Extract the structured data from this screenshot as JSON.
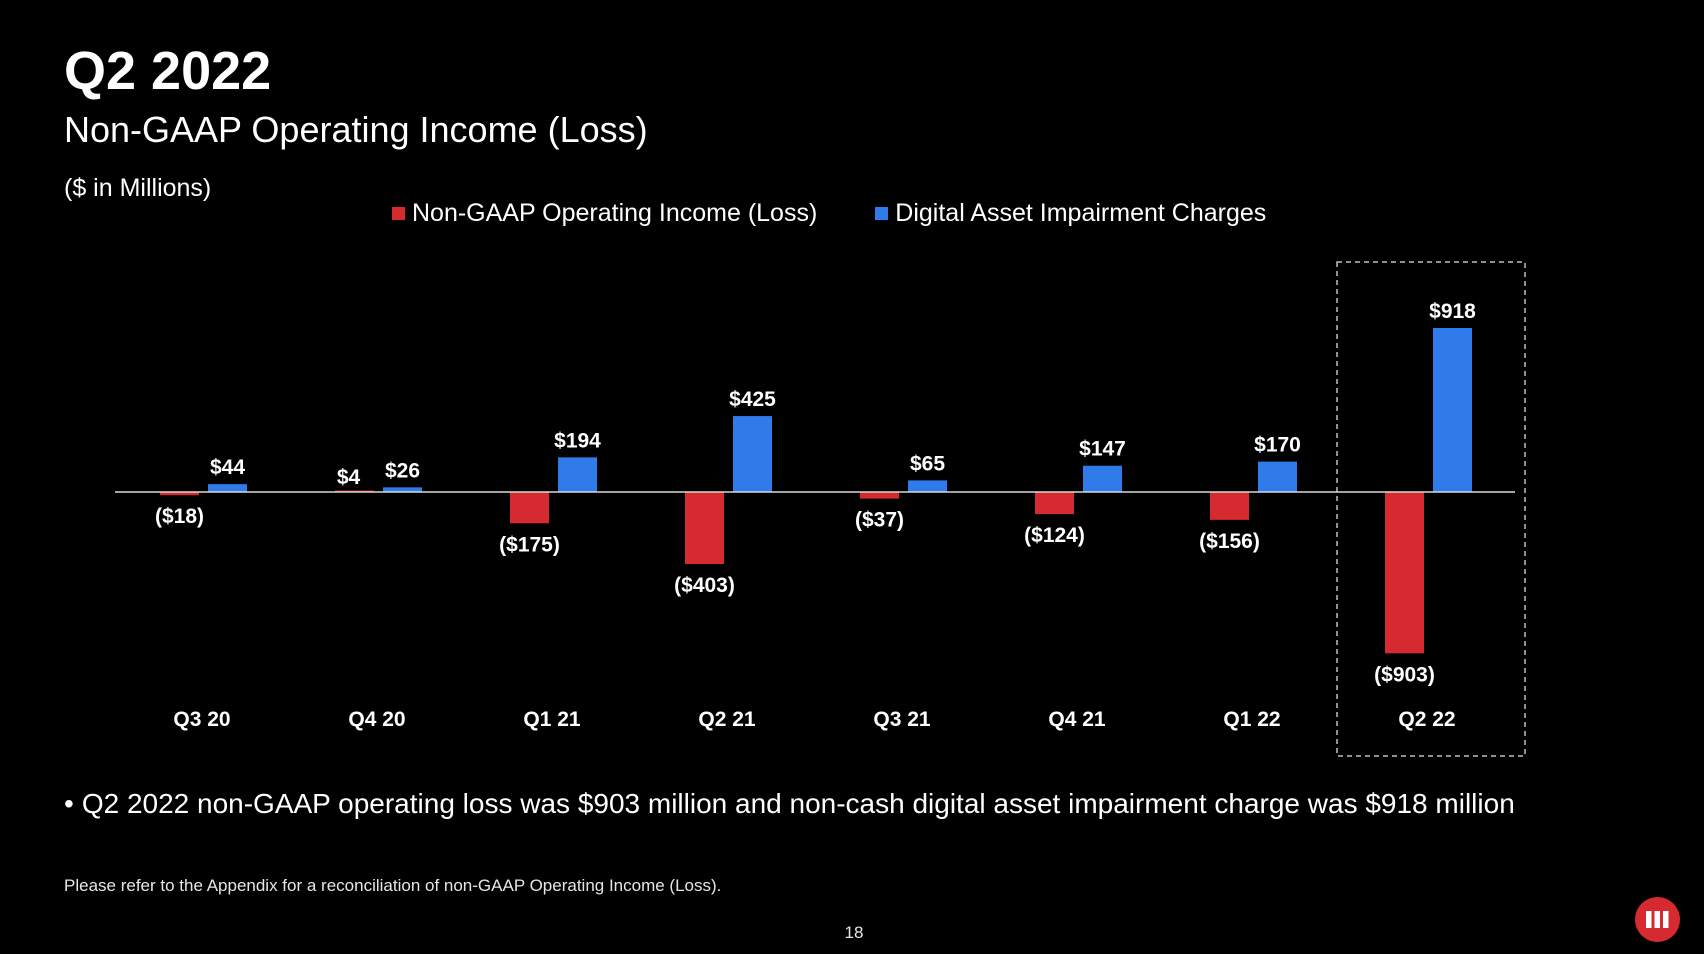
{
  "slide": {
    "title": "Q2 2022",
    "subtitle": "Non-GAAP Operating Income (Loss)",
    "units": "($ in Millions)",
    "bullet": "Q2 2022 non-GAAP operating loss was $903 million and non-cash digital asset impairment charge was $918 million",
    "footnote": "Please refer to the Appendix for a reconciliation of non-GAAP Operating Income (Loss).",
    "page_number": "18",
    "logo_icon": "microstrategy-logo-icon"
  },
  "colors": {
    "background": "#000000",
    "text": "#ffffff",
    "income": "#d42a30",
    "impairment": "#2f7bea",
    "highlight_border": "#bfbfbf"
  },
  "chart_data": {
    "type": "bar",
    "categories": [
      "Q3 20",
      "Q4 20",
      "Q1 21",
      "Q2 21",
      "Q3 21",
      "Q4 21",
      "Q1 22",
      "Q2 22"
    ],
    "series": [
      {
        "name": "Non-GAAP Operating Income (Loss)",
        "values": [
          -18,
          4,
          -175,
          -403,
          -37,
          -124,
          -156,
          -903
        ],
        "labels": [
          "($18)",
          "$4",
          "($175)",
          "($403)",
          "($37)",
          "($124)",
          "($156)",
          "($903)"
        ]
      },
      {
        "name": "Digital Asset Impairment Charges",
        "values": [
          44,
          26,
          194,
          425,
          65,
          147,
          170,
          918
        ],
        "labels": [
          "$44",
          "$26",
          "$194",
          "$425",
          "$65",
          "$147",
          "$170",
          "$918"
        ]
      }
    ],
    "highlight_category": "Q2 22",
    "legend_position": "top",
    "grid": false
  }
}
